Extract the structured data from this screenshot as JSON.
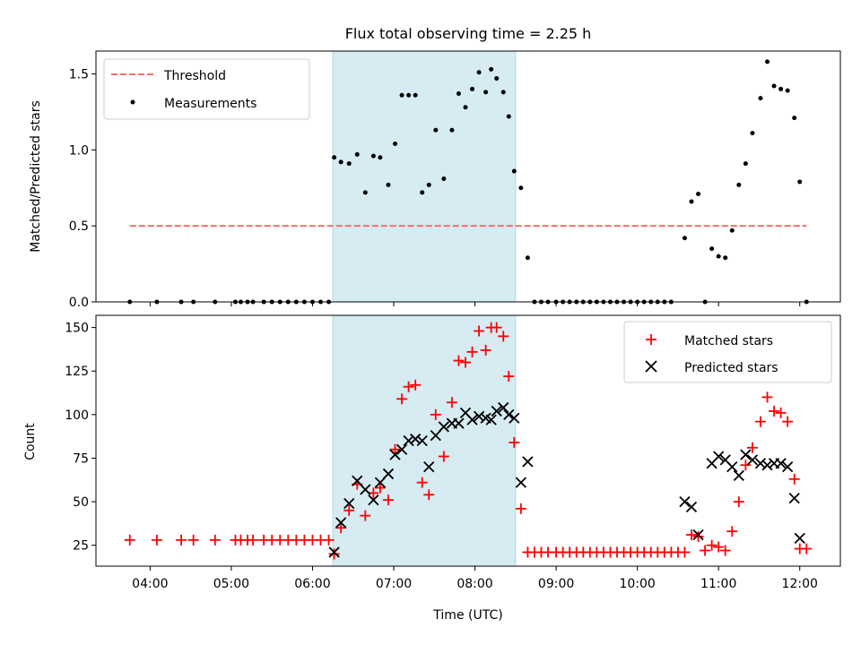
{
  "title": "Flux total observing time = 2.25 h",
  "colors": {
    "threshold": "#ff6b6b",
    "measurements": "#000000",
    "matched": "#ff0000",
    "predicted": "#000000",
    "highlight": "#add8e6"
  },
  "chart_data": [
    {
      "type": "scatter",
      "ylabel": "Matched/Predicted stars",
      "xlim": [
        "03:20",
        "12:30"
      ],
      "ylim": [
        0,
        1.65
      ],
      "y_ticks": [
        0,
        0.5,
        1.0,
        1.5
      ],
      "y_tick_labels": [
        "0.0",
        "0.5",
        "1.0",
        "1.5"
      ],
      "highlight_span": [
        "06:15",
        "08:30"
      ],
      "legend": {
        "position": "top-left",
        "entries": [
          "Threshold",
          "Measurements"
        ]
      },
      "threshold": {
        "name": "Threshold",
        "value": 0.5,
        "x_range": [
          "03:45",
          "12:05"
        ]
      },
      "series": [
        {
          "name": "Measurements",
          "marker": "dot",
          "points": [
            [
              "03:45",
              0
            ],
            [
              "04:05",
              0
            ],
            [
              "04:23",
              0
            ],
            [
              "04:32",
              0
            ],
            [
              "04:48",
              0
            ],
            [
              "05:03",
              0
            ],
            [
              "05:07",
              0
            ],
            [
              "05:12",
              0
            ],
            [
              "05:16",
              0
            ],
            [
              "05:24",
              0
            ],
            [
              "05:30",
              0
            ],
            [
              "05:36",
              0
            ],
            [
              "05:42",
              0
            ],
            [
              "05:48",
              0
            ],
            [
              "05:54",
              0
            ],
            [
              "06:00",
              0
            ],
            [
              "06:06",
              0
            ],
            [
              "06:12",
              0
            ],
            [
              "06:16",
              0.95
            ],
            [
              "06:21",
              0.92
            ],
            [
              "06:27",
              0.91
            ],
            [
              "06:33",
              0.97
            ],
            [
              "06:39",
              0.72
            ],
            [
              "06:45",
              0.96
            ],
            [
              "06:50",
              0.95
            ],
            [
              "06:56",
              0.77
            ],
            [
              "07:01",
              1.04
            ],
            [
              "07:06",
              1.36
            ],
            [
              "07:11",
              1.36
            ],
            [
              "07:16",
              1.36
            ],
            [
              "07:21",
              0.72
            ],
            [
              "07:26",
              0.77
            ],
            [
              "07:31",
              1.13
            ],
            [
              "07:37",
              0.81
            ],
            [
              "07:43",
              1.13
            ],
            [
              "07:48",
              1.37
            ],
            [
              "07:53",
              1.28
            ],
            [
              "07:58",
              1.4
            ],
            [
              "08:03",
              1.51
            ],
            [
              "08:08",
              1.38
            ],
            [
              "08:12",
              1.53
            ],
            [
              "08:16",
              1.47
            ],
            [
              "08:21",
              1.38
            ],
            [
              "08:25",
              1.22
            ],
            [
              "08:29",
              0.86
            ],
            [
              "08:34",
              0.75
            ],
            [
              "08:39",
              0.29
            ],
            [
              "08:44",
              0
            ],
            [
              "08:49",
              0
            ],
            [
              "08:54",
              0
            ],
            [
              "09:00",
              0
            ],
            [
              "09:05",
              0
            ],
            [
              "09:10",
              0
            ],
            [
              "09:15",
              0
            ],
            [
              "09:20",
              0
            ],
            [
              "09:25",
              0
            ],
            [
              "09:30",
              0
            ],
            [
              "09:35",
              0
            ],
            [
              "09:40",
              0
            ],
            [
              "09:45",
              0
            ],
            [
              "09:50",
              0
            ],
            [
              "09:55",
              0
            ],
            [
              "10:00",
              0
            ],
            [
              "10:05",
              0
            ],
            [
              "10:10",
              0
            ],
            [
              "10:15",
              0
            ],
            [
              "10:20",
              0
            ],
            [
              "10:25",
              0
            ],
            [
              "10:35",
              0.42
            ],
            [
              "10:40",
              0.66
            ],
            [
              "10:45",
              0.71
            ],
            [
              "10:50",
              0
            ],
            [
              "10:55",
              0.35
            ],
            [
              "11:00",
              0.3
            ],
            [
              "11:05",
              0.29
            ],
            [
              "11:10",
              0.47
            ],
            [
              "11:15",
              0.77
            ],
            [
              "11:20",
              0.91
            ],
            [
              "11:25",
              1.11
            ],
            [
              "11:31",
              1.34
            ],
            [
              "11:36",
              1.58
            ],
            [
              "11:41",
              1.42
            ],
            [
              "11:46",
              1.4
            ],
            [
              "11:51",
              1.39
            ],
            [
              "11:56",
              1.21
            ],
            [
              "12:00",
              0.79
            ],
            [
              "12:05",
              0
            ]
          ]
        }
      ]
    },
    {
      "type": "scatter",
      "xlabel": "Time (UTC)",
      "ylabel": "Count",
      "xlim": [
        "03:20",
        "12:30"
      ],
      "ylim": [
        13,
        157
      ],
      "x_ticks": [
        "04:00",
        "05:00",
        "06:00",
        "07:00",
        "08:00",
        "09:00",
        "10:00",
        "11:00",
        "12:00"
      ],
      "y_ticks": [
        25,
        50,
        75,
        100,
        125,
        150
      ],
      "y_tick_labels": [
        "25",
        "50",
        "75",
        "100",
        "125",
        "150"
      ],
      "highlight_span": [
        "06:15",
        "08:30"
      ],
      "legend": {
        "position": "top-right",
        "entries": [
          "Matched stars",
          "Predicted stars"
        ]
      },
      "series": [
        {
          "name": "Matched stars",
          "marker": "plus",
          "points": [
            [
              "03:45",
              28
            ],
            [
              "04:05",
              28
            ],
            [
              "04:23",
              28
            ],
            [
              "04:32",
              28
            ],
            [
              "04:48",
              28
            ],
            [
              "05:03",
              28
            ],
            [
              "05:07",
              28
            ],
            [
              "05:12",
              28
            ],
            [
              "05:16",
              28
            ],
            [
              "05:24",
              28
            ],
            [
              "05:30",
              28
            ],
            [
              "05:36",
              28
            ],
            [
              "05:42",
              28
            ],
            [
              "05:48",
              28
            ],
            [
              "05:54",
              28
            ],
            [
              "06:00",
              28
            ],
            [
              "06:06",
              28
            ],
            [
              "06:12",
              28
            ],
            [
              "06:16",
              20
            ],
            [
              "06:21",
              35
            ],
            [
              "06:27",
              45
            ],
            [
              "06:33",
              60
            ],
            [
              "06:39",
              42
            ],
            [
              "06:45",
              55
            ],
            [
              "06:50",
              58
            ],
            [
              "06:56",
              51
            ],
            [
              "07:01",
              80
            ],
            [
              "07:06",
              109
            ],
            [
              "07:11",
              116
            ],
            [
              "07:16",
              117
            ],
            [
              "07:21",
              61
            ],
            [
              "07:26",
              54
            ],
            [
              "07:31",
              100
            ],
            [
              "07:37",
              76
            ],
            [
              "07:43",
              107
            ],
            [
              "07:48",
              131
            ],
            [
              "07:53",
              130
            ],
            [
              "07:58",
              136
            ],
            [
              "08:03",
              148
            ],
            [
              "08:08",
              137
            ],
            [
              "08:12",
              150
            ],
            [
              "08:16",
              150
            ],
            [
              "08:21",
              145
            ],
            [
              "08:25",
              122
            ],
            [
              "08:29",
              84
            ],
            [
              "08:34",
              46
            ],
            [
              "08:39",
              21
            ],
            [
              "08:44",
              21
            ],
            [
              "08:49",
              21
            ],
            [
              "08:54",
              21
            ],
            [
              "09:00",
              21
            ],
            [
              "09:05",
              21
            ],
            [
              "09:10",
              21
            ],
            [
              "09:15",
              21
            ],
            [
              "09:20",
              21
            ],
            [
              "09:25",
              21
            ],
            [
              "09:30",
              21
            ],
            [
              "09:35",
              21
            ],
            [
              "09:40",
              21
            ],
            [
              "09:45",
              21
            ],
            [
              "09:50",
              21
            ],
            [
              "09:55",
              21
            ],
            [
              "10:00",
              21
            ],
            [
              "10:05",
              21
            ],
            [
              "10:10",
              21
            ],
            [
              "10:15",
              21
            ],
            [
              "10:20",
              21
            ],
            [
              "10:25",
              21
            ],
            [
              "10:30",
              21
            ],
            [
              "10:35",
              21
            ],
            [
              "10:40",
              31
            ],
            [
              "10:45",
              30
            ],
            [
              "10:50",
              22
            ],
            [
              "10:55",
              25
            ],
            [
              "11:00",
              24
            ],
            [
              "11:05",
              22
            ],
            [
              "11:10",
              33
            ],
            [
              "11:15",
              50
            ],
            [
              "11:20",
              71
            ],
            [
              "11:25",
              81
            ],
            [
              "11:31",
              96
            ],
            [
              "11:36",
              110
            ],
            [
              "11:41",
              102
            ],
            [
              "11:46",
              101
            ],
            [
              "11:51",
              96
            ],
            [
              "11:56",
              63
            ],
            [
              "12:00",
              23
            ],
            [
              "12:05",
              23
            ]
          ]
        },
        {
          "name": "Predicted stars",
          "marker": "x",
          "points": [
            [
              "06:16",
              21
            ],
            [
              "06:21",
              38
            ],
            [
              "06:27",
              49
            ],
            [
              "06:33",
              62
            ],
            [
              "06:39",
              57
            ],
            [
              "06:45",
              51
            ],
            [
              "06:50",
              61
            ],
            [
              "06:56",
              66
            ],
            [
              "07:01",
              77
            ],
            [
              "07:06",
              80
            ],
            [
              "07:11",
              85
            ],
            [
              "07:16",
              86
            ],
            [
              "07:21",
              85
            ],
            [
              "07:26",
              70
            ],
            [
              "07:31",
              88
            ],
            [
              "07:37",
              93
            ],
            [
              "07:43",
              95
            ],
            [
              "07:48",
              95
            ],
            [
              "07:53",
              101
            ],
            [
              "07:58",
              97
            ],
            [
              "08:03",
              99
            ],
            [
              "08:08",
              98
            ],
            [
              "08:12",
              97
            ],
            [
              "08:16",
              102
            ],
            [
              "08:21",
              104
            ],
            [
              "08:25",
              100
            ],
            [
              "08:29",
              98
            ],
            [
              "08:34",
              61
            ],
            [
              "08:39",
              73
            ],
            [
              "10:35",
              50
            ],
            [
              "10:40",
              47
            ],
            [
              "10:45",
              31
            ],
            [
              "10:55",
              72
            ],
            [
              "11:00",
              76
            ],
            [
              "11:05",
              74
            ],
            [
              "11:10",
              70
            ],
            [
              "11:15",
              65
            ],
            [
              "11:20",
              77
            ],
            [
              "11:25",
              74
            ],
            [
              "11:31",
              72
            ],
            [
              "11:36",
              71
            ],
            [
              "11:41",
              72
            ],
            [
              "11:46",
              72
            ],
            [
              "11:51",
              70
            ],
            [
              "11:56",
              52
            ],
            [
              "12:00",
              29
            ]
          ]
        }
      ]
    }
  ]
}
